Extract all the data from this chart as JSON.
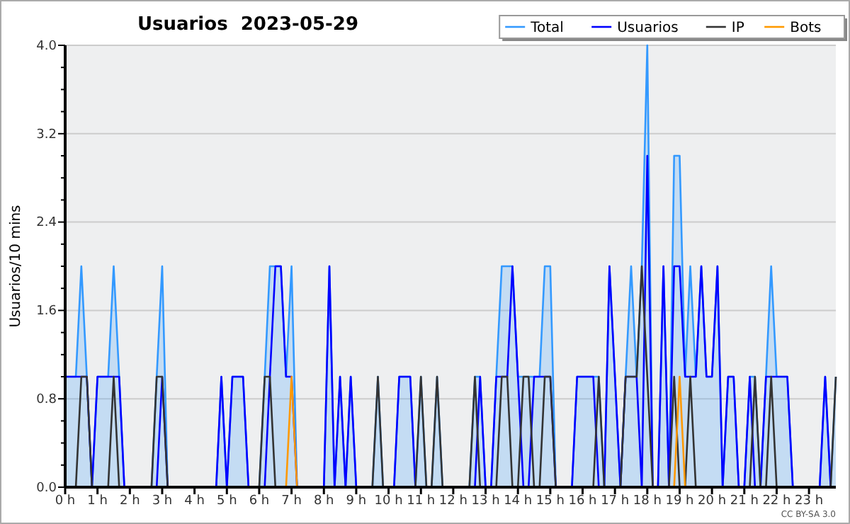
{
  "chart_data": {
    "type": "line",
    "title": "Usuarios  2023-05-29",
    "ylabel": "Usuarios/10 mins",
    "annotations": [
      "CC BY-SA 3.0"
    ],
    "x": [
      0,
      0.17,
      0.33,
      0.5,
      0.67,
      0.83,
      1,
      1.17,
      1.33,
      1.5,
      1.67,
      1.83,
      2,
      2.17,
      2.33,
      2.5,
      2.67,
      2.83,
      3,
      3.17,
      3.33,
      3.5,
      3.67,
      3.83,
      4,
      4.17,
      4.33,
      4.5,
      4.67,
      4.83,
      5,
      5.17,
      5.33,
      5.5,
      5.67,
      5.83,
      6,
      6.17,
      6.33,
      6.5,
      6.67,
      6.83,
      7,
      7.17,
      7.33,
      7.5,
      7.67,
      7.83,
      8,
      8.17,
      8.33,
      8.5,
      8.67,
      8.83,
      9,
      9.17,
      9.33,
      9.5,
      9.67,
      9.83,
      10,
      10.17,
      10.33,
      10.5,
      10.67,
      10.83,
      11,
      11.17,
      11.33,
      11.5,
      11.67,
      11.83,
      12,
      12.17,
      12.33,
      12.5,
      12.67,
      12.83,
      13,
      13.17,
      13.33,
      13.5,
      13.67,
      13.83,
      14,
      14.17,
      14.33,
      14.5,
      14.67,
      14.83,
      15,
      15.17,
      15.33,
      15.5,
      15.67,
      15.83,
      16,
      16.17,
      16.33,
      16.5,
      16.67,
      16.83,
      17,
      17.17,
      17.33,
      17.5,
      17.67,
      17.83,
      18,
      18.17,
      18.33,
      18.5,
      18.67,
      18.83,
      19,
      19.17,
      19.33,
      19.5,
      19.67,
      19.83,
      20,
      20.17,
      20.33,
      20.5,
      20.67,
      20.83,
      21,
      21.17,
      21.33,
      21.5,
      21.67,
      21.83,
      22,
      22.17,
      22.33,
      22.5,
      22.67,
      22.83,
      23,
      23.17,
      23.33,
      23.5,
      23.67,
      23.83
    ],
    "series": [
      {
        "name": "Total",
        "type": "area",
        "color": "#3399ff",
        "values": [
          1,
          1,
          1,
          2,
          1,
          0,
          1,
          1,
          1,
          2,
          1,
          0,
          0,
          0,
          0,
          0,
          0,
          1,
          2,
          0,
          0,
          0,
          0,
          0,
          0,
          0,
          0,
          0,
          0,
          1,
          0,
          1,
          1,
          1,
          0,
          0,
          0,
          1,
          2,
          2,
          2,
          1,
          2,
          0,
          0,
          0,
          0,
          0,
          0,
          2,
          0,
          1,
          0,
          1,
          0,
          0,
          0,
          0,
          1,
          0,
          0,
          0,
          1,
          1,
          1,
          0,
          1,
          0,
          0,
          1,
          0,
          0,
          0,
          0,
          0,
          0,
          1,
          1,
          0,
          0,
          1,
          2,
          2,
          2,
          1,
          1,
          1,
          1,
          1,
          2,
          2,
          0,
          0,
          0,
          0,
          1,
          1,
          1,
          1,
          1,
          0,
          2,
          1,
          0,
          1,
          2,
          1,
          2,
          4,
          0,
          0,
          2,
          0,
          3,
          3,
          1,
          2,
          1,
          2,
          1,
          1,
          2,
          0,
          1,
          1,
          0,
          0,
          1,
          1,
          0,
          1,
          2,
          1,
          1,
          1,
          0,
          0,
          0,
          0,
          0,
          0,
          1,
          0,
          1
        ]
      },
      {
        "name": "Usuarios",
        "color": "#0000ff",
        "values": [
          1,
          1,
          1,
          1,
          1,
          0,
          1,
          1,
          1,
          1,
          1,
          0,
          0,
          0,
          0,
          0,
          0,
          0,
          1,
          0,
          0,
          0,
          0,
          0,
          0,
          0,
          0,
          0,
          0,
          1,
          0,
          1,
          1,
          1,
          0,
          0,
          0,
          0,
          1,
          2,
          2,
          1,
          1,
          0,
          0,
          0,
          0,
          0,
          0,
          2,
          0,
          1,
          0,
          1,
          0,
          0,
          0,
          0,
          0,
          0,
          0,
          0,
          1,
          1,
          1,
          0,
          0,
          0,
          0,
          0,
          0,
          0,
          0,
          0,
          0,
          0,
          0,
          1,
          0,
          0,
          1,
          1,
          1,
          2,
          1,
          0,
          0,
          1,
          1,
          1,
          1,
          0,
          0,
          0,
          0,
          1,
          1,
          1,
          1,
          0,
          0,
          2,
          1,
          0,
          1,
          1,
          1,
          0,
          3,
          0,
          0,
          2,
          0,
          2,
          2,
          1,
          1,
          1,
          2,
          1,
          1,
          2,
          0,
          1,
          1,
          0,
          0,
          1,
          0,
          0,
          1,
          1,
          1,
          1,
          1,
          0,
          0,
          0,
          0,
          0,
          0,
          1,
          0,
          0
        ]
      },
      {
        "name": "IP",
        "color": "#333333",
        "values": [
          0,
          0,
          0,
          1,
          1,
          0,
          0,
          0,
          0,
          1,
          0,
          0,
          0,
          0,
          0,
          0,
          0,
          1,
          1,
          0,
          0,
          0,
          0,
          0,
          0,
          0,
          0,
          0,
          0,
          0,
          0,
          0,
          0,
          0,
          0,
          0,
          0,
          1,
          1,
          0,
          0,
          0,
          0,
          0,
          0,
          0,
          0,
          0,
          0,
          0,
          0,
          0,
          0,
          0,
          0,
          0,
          0,
          0,
          1,
          0,
          0,
          0,
          0,
          0,
          0,
          0,
          1,
          0,
          0,
          1,
          0,
          0,
          0,
          0,
          0,
          0,
          1,
          0,
          0,
          0,
          0,
          1,
          1,
          0,
          0,
          1,
          1,
          0,
          0,
          1,
          1,
          0,
          0,
          0,
          0,
          0,
          0,
          0,
          0,
          1,
          0,
          0,
          0,
          0,
          1,
          1,
          1,
          2,
          1,
          0,
          0,
          0,
          0,
          1,
          0,
          0,
          1,
          0,
          0,
          0,
          0,
          0,
          0,
          0,
          0,
          0,
          0,
          0,
          1,
          0,
          0,
          1,
          0,
          0,
          0,
          0,
          0,
          0,
          0,
          0,
          0,
          0,
          0,
          1
        ]
      },
      {
        "name": "Bots",
        "color": "#ff9900",
        "values": [
          null,
          null,
          null,
          null,
          null,
          null,
          null,
          null,
          null,
          null,
          null,
          null,
          null,
          null,
          null,
          null,
          null,
          null,
          null,
          null,
          null,
          null,
          null,
          null,
          null,
          null,
          null,
          null,
          null,
          null,
          null,
          null,
          null,
          null,
          null,
          null,
          null,
          null,
          null,
          null,
          null,
          0,
          1,
          0,
          null,
          null,
          null,
          null,
          null,
          null,
          null,
          null,
          null,
          null,
          null,
          null,
          null,
          null,
          null,
          null,
          null,
          null,
          null,
          null,
          null,
          null,
          null,
          null,
          null,
          null,
          null,
          null,
          null,
          null,
          null,
          null,
          null,
          null,
          null,
          null,
          null,
          null,
          null,
          null,
          null,
          null,
          null,
          null,
          null,
          null,
          null,
          null,
          null,
          null,
          null,
          null,
          null,
          null,
          null,
          null,
          null,
          null,
          null,
          null,
          null,
          null,
          null,
          null,
          null,
          null,
          null,
          null,
          null,
          0,
          1,
          0,
          null,
          null,
          null,
          null,
          null,
          null,
          null,
          null,
          null,
          null,
          null,
          null,
          null,
          null,
          null,
          null,
          null,
          null,
          null,
          null,
          null,
          null,
          null,
          null,
          null,
          null,
          null,
          null
        ]
      }
    ],
    "xlim": [
      0,
      23.83
    ],
    "xticks": [
      {
        "value": 0,
        "label": "0 h"
      },
      {
        "value": 1,
        "label": "1 h"
      },
      {
        "value": 2,
        "label": "2 h"
      },
      {
        "value": 3,
        "label": "3 h"
      },
      {
        "value": 4,
        "label": "4 h"
      },
      {
        "value": 5,
        "label": "5 h"
      },
      {
        "value": 6,
        "label": "6 h"
      },
      {
        "value": 7,
        "label": "7 h"
      },
      {
        "value": 8,
        "label": "8 h"
      },
      {
        "value": 9,
        "label": "9 h"
      },
      {
        "value": 10,
        "label": "10 h"
      },
      {
        "value": 11,
        "label": "11 h"
      },
      {
        "value": 12,
        "label": "12 h"
      },
      {
        "value": 13,
        "label": "13 h"
      },
      {
        "value": 14,
        "label": "14 h"
      },
      {
        "value": 15,
        "label": "15 h"
      },
      {
        "value": 16,
        "label": "16 h"
      },
      {
        "value": 17,
        "label": "17 h"
      },
      {
        "value": 18,
        "label": "18 h"
      },
      {
        "value": 19,
        "label": "19 h"
      },
      {
        "value": 20,
        "label": "20 h"
      },
      {
        "value": 21,
        "label": "21 h"
      },
      {
        "value": 22,
        "label": "22 h"
      },
      {
        "value": 23,
        "label": "23 h"
      }
    ],
    "ylim": [
      0,
      4
    ],
    "yticks": [
      {
        "value": 0,
        "label": "0.0"
      },
      {
        "value": 0.2,
        "label": null
      },
      {
        "value": 0.4,
        "label": null
      },
      {
        "value": 0.6,
        "label": null
      },
      {
        "value": 0.8,
        "label": "0.8"
      },
      {
        "value": 1,
        "label": null
      },
      {
        "value": 1.2,
        "label": null
      },
      {
        "value": 1.4,
        "label": null
      },
      {
        "value": 1.6,
        "label": "1.6"
      },
      {
        "value": 1.8,
        "label": null
      },
      {
        "value": 2,
        "label": null
      },
      {
        "value": 2.2,
        "label": null
      },
      {
        "value": 2.4,
        "label": "2.4"
      },
      {
        "value": 2.6,
        "label": null
      },
      {
        "value": 2.8,
        "label": null
      },
      {
        "value": 3,
        "label": null
      },
      {
        "value": 3.2,
        "label": "3.2"
      },
      {
        "value": 3.4,
        "label": null
      },
      {
        "value": 3.6,
        "label": null
      },
      {
        "value": 3.8,
        "label": null
      },
      {
        "value": 4,
        "label": "4.0"
      }
    ],
    "grid": "y",
    "legend": "top right",
    "marker": "none",
    "line_style": "solid"
  }
}
